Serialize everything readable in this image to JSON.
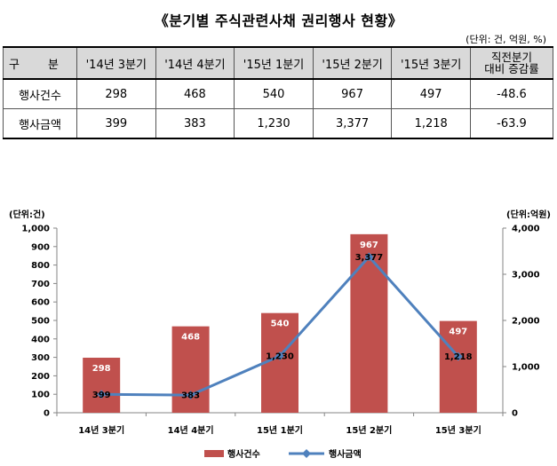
{
  "title": "《분기별 주식관련사채 권리행사 현황》",
  "unit_note": "(단위: 건, 억원, %)",
  "table": {
    "header_label": "구 분",
    "columns": [
      "'14년 3분기",
      "'14년 4분기",
      "'15년 1분기",
      "'15년 2분기",
      "'15년 3분기"
    ],
    "change_header_line1": "직전분기",
    "change_header_line2": "대비 증감률",
    "rows": [
      {
        "label": "행사건수",
        "values": [
          "298",
          "468",
          "540",
          "967",
          "497"
        ],
        "change": "-48.6"
      },
      {
        "label": "행사금액",
        "values": [
          "399",
          "383",
          "1,230",
          "3,377",
          "1,218"
        ],
        "change": "-63.9"
      }
    ]
  },
  "chart_data": {
    "type": "bar",
    "categories": [
      "14년 3분기",
      "14년 4분기",
      "15년 1분기",
      "15년 2분기",
      "15년 3분기"
    ],
    "series": [
      {
        "name": "행사건수",
        "type": "bar",
        "axis": "left",
        "color": "#c0504d",
        "values": [
          298,
          468,
          540,
          967,
          497
        ],
        "labels": [
          "298",
          "468",
          "540",
          "967",
          "497"
        ]
      },
      {
        "name": "행사금액",
        "type": "line",
        "axis": "right",
        "color": "#4f81bd",
        "values": [
          399,
          383,
          1230,
          3377,
          1218
        ],
        "labels": [
          "399",
          "383",
          "1,230",
          "3,377",
          "1,218"
        ]
      }
    ],
    "y_left": {
      "label": "(단위:건)",
      "min": 0,
      "max": 1000,
      "step": 100,
      "ticks": [
        "0",
        "100",
        "200",
        "300",
        "400",
        "500",
        "600",
        "700",
        "800",
        "900",
        "1,000"
      ]
    },
    "y_right": {
      "label": "(단위:억원)",
      "min": 0,
      "max": 4000,
      "step": 1000,
      "ticks": [
        "0",
        "1,000",
        "2,000",
        "3,000",
        "4,000"
      ]
    },
    "legend_position": "bottom",
    "grid": false
  }
}
